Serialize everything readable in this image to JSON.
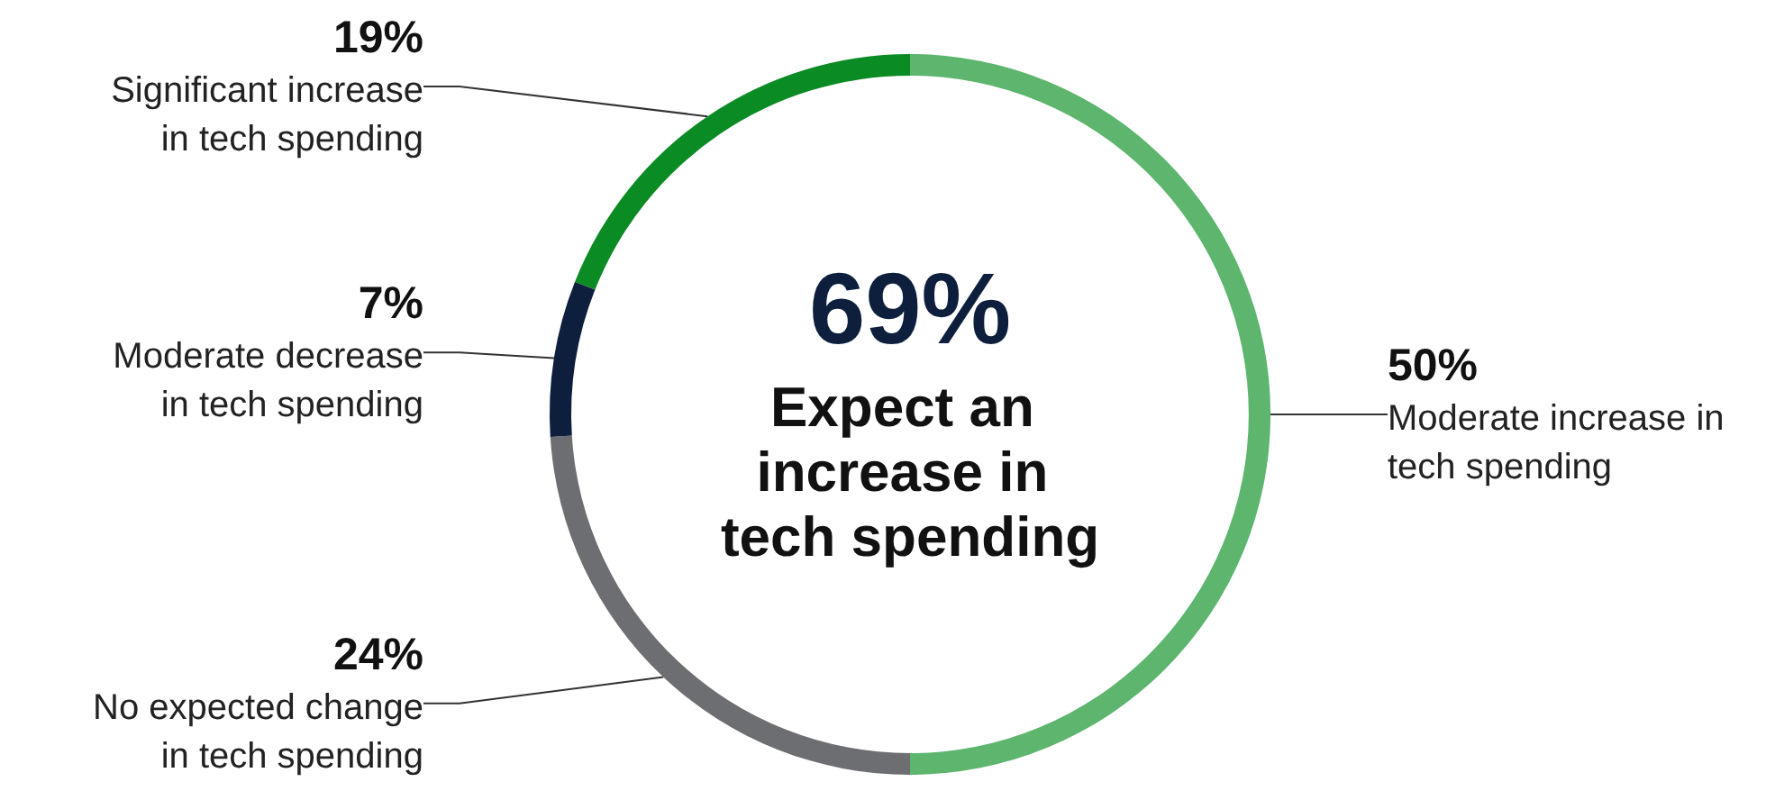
{
  "chart_data": {
    "type": "donut",
    "categories": [
      "Moderate increase in tech spending",
      "No expected change in tech spending",
      "Moderate decrease in tech spending",
      "Significant increase in tech spending"
    ],
    "values": [
      50,
      24,
      7,
      19
    ],
    "colors": [
      "#5db56e",
      "#6d6e71",
      "#0d1f3c",
      "#0b8b24"
    ],
    "value_labels": [
      "50%",
      "24%",
      "7%",
      "19%"
    ],
    "legend": false,
    "annotations": [
      "69%",
      "Expect an increase in tech spending"
    ]
  }
}
